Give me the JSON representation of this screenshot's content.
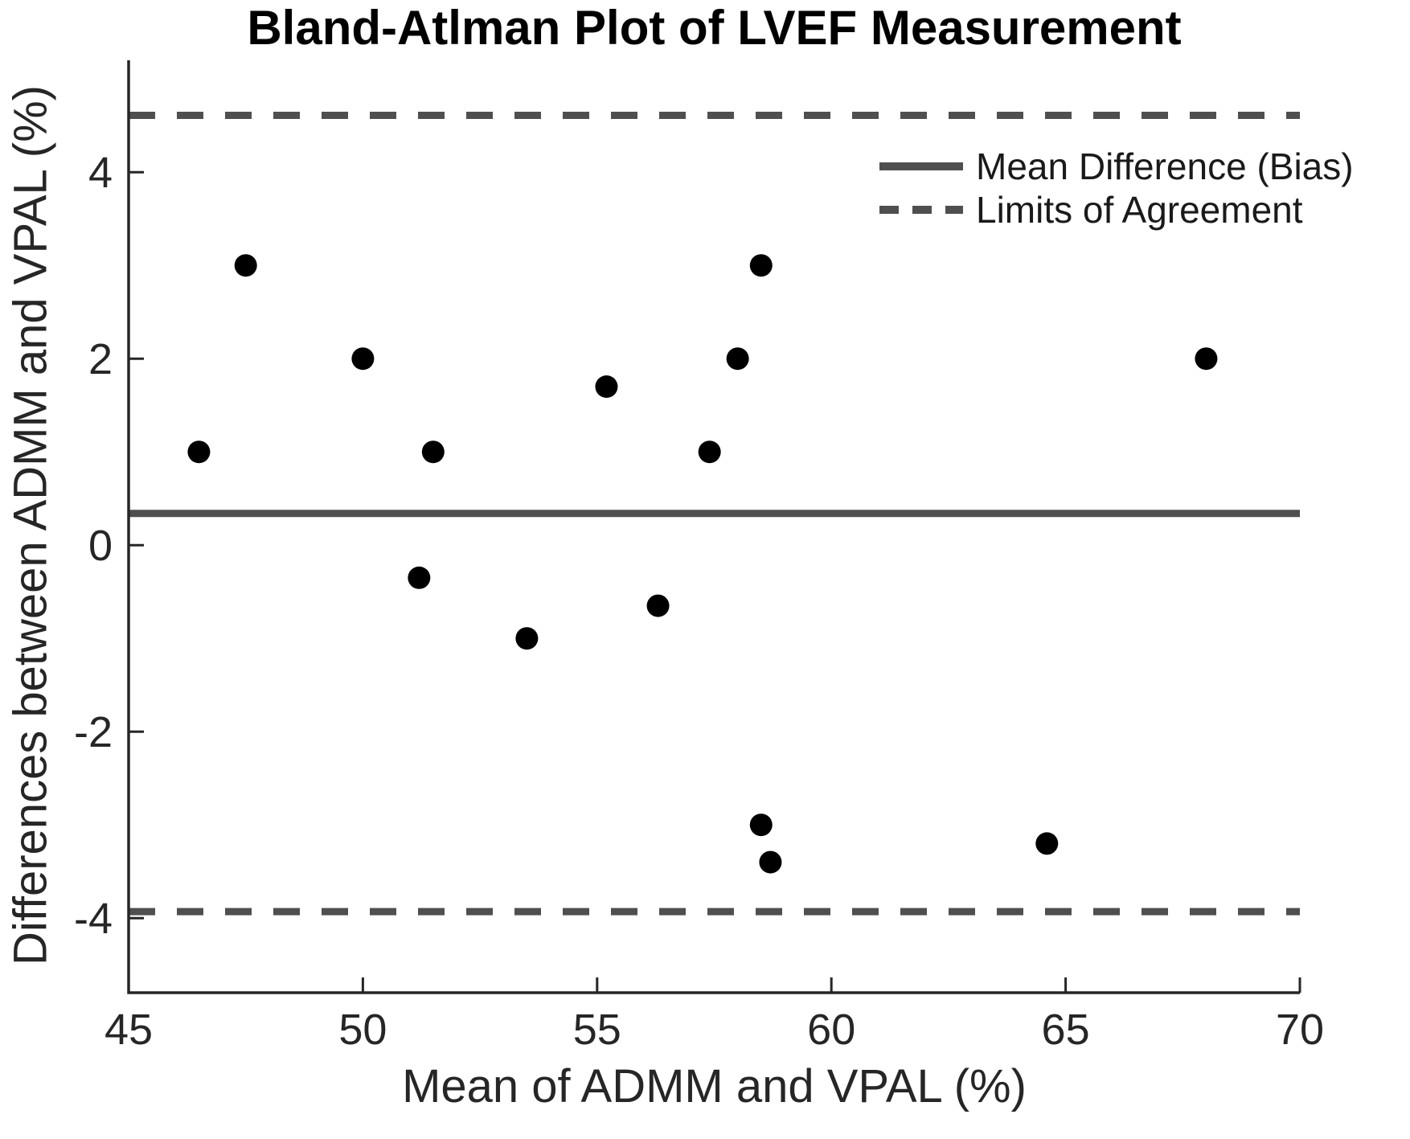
{
  "chart_data": {
    "type": "scatter",
    "title": "Bland-Atlman Plot of LVEF Measurement",
    "xlabel": "Mean of ADMM and VPAL (%)",
    "ylabel": "Differences between ADMM and VPAL (%)",
    "xlim": [
      45,
      70
    ],
    "ylim": [
      -4.8,
      5.2
    ],
    "xticks": [
      45,
      50,
      55,
      60,
      65,
      70
    ],
    "yticks": [
      -4,
      -2,
      0,
      2,
      4
    ],
    "grid": false,
    "legend_position": "top-right",
    "marker": {
      "shape": "circle",
      "color": "#000000",
      "radius_px": 14
    },
    "points": [
      {
        "x": 46.5,
        "y": 1.0
      },
      {
        "x": 47.5,
        "y": 3.0
      },
      {
        "x": 50.0,
        "y": 2.0
      },
      {
        "x": 51.2,
        "y": -0.35
      },
      {
        "x": 51.5,
        "y": 1.0
      },
      {
        "x": 53.5,
        "y": -1.0
      },
      {
        "x": 55.2,
        "y": 1.7
      },
      {
        "x": 56.3,
        "y": -0.65
      },
      {
        "x": 57.4,
        "y": 1.0
      },
      {
        "x": 58.0,
        "y": 2.0
      },
      {
        "x": 58.5,
        "y": 3.0
      },
      {
        "x": 58.5,
        "y": -3.0
      },
      {
        "x": 58.7,
        "y": -3.4
      },
      {
        "x": 64.6,
        "y": -3.2
      },
      {
        "x": 68.0,
        "y": 2.0
      }
    ],
    "reference_lines": [
      {
        "name": "mean-bias",
        "value": 0.34,
        "style": "solid"
      },
      {
        "name": "upper-limit-of-agreement",
        "value": 4.61,
        "style": "dashed"
      },
      {
        "name": "lower-limit-of-agreement",
        "value": -3.93,
        "style": "dashed"
      }
    ],
    "legend": [
      {
        "label": "Mean Difference (Bias)",
        "line_style": "solid"
      },
      {
        "label": "Limits of Agreement",
        "line_style": "dashed"
      }
    ]
  },
  "colors": {
    "reference_line": "#4f4f4f",
    "marker": "#000000",
    "axis": "#262626",
    "title_text": "#000000",
    "label_text": "#262626",
    "background": "#ffffff"
  }
}
